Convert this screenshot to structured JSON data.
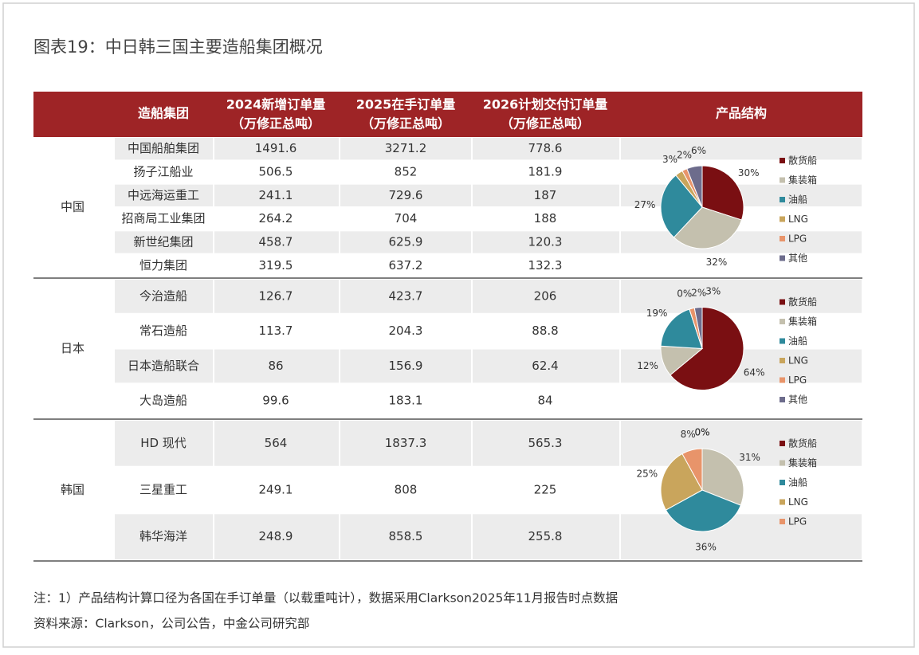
{
  "title": "图表19：中日韩三国主要造船集团概况",
  "table": {
    "headers": [
      [
        "造船集团"
      ],
      [
        "2024新增订单量",
        "（万修正总吨）"
      ],
      [
        "2025在手订单量",
        "（万修正总吨）"
      ],
      [
        "2026计划交付订单量",
        "（万修正总吨）"
      ],
      [
        "产品结构"
      ]
    ],
    "groups": [
      {
        "name": "中国",
        "rows": [
          [
            "中国船舶集团",
            1491.6,
            3271.2,
            778.6
          ],
          [
            "扬子江船业",
            506.5,
            852,
            181.9
          ],
          [
            "中远海运重工",
            241.1,
            729.6,
            187
          ],
          [
            "招商局工业集团",
            264.2,
            704,
            188
          ],
          [
            "新世纪集团",
            458.7,
            625.9,
            120.3
          ],
          [
            "恒力集团",
            319.5,
            637.2,
            132.3
          ]
        ],
        "pie": {
          "type": "pie",
          "slices": [
            {
              "name": "散货船",
              "color": "#7a0f12",
              "value": 30,
              "value_label": "30%"
            },
            {
              "name": "集装箱",
              "color": "#c4c0ae",
              "value": 32,
              "value_label": "32%"
            },
            {
              "name": "油船",
              "color": "#2f8a9c",
              "value": 27,
              "value_label": "27%"
            },
            {
              "name": "LNG",
              "color": "#c9a55c",
              "value": 3,
              "value_label": "3%"
            },
            {
              "name": "LPG",
              "color": "#e8946a",
              "value": 2,
              "value_label": "2%"
            },
            {
              "name": "其他",
              "color": "#6d6c8c",
              "value": 6,
              "value_label": "6%"
            }
          ]
        }
      },
      {
        "name": "日本",
        "rows": [
          [
            "今治造船",
            126.7,
            423.7,
            206
          ],
          [
            "常石造船",
            113.7,
            204.3,
            88.8
          ],
          [
            "日本造船联合",
            86,
            156.9,
            62.4
          ],
          [
            "大岛造船",
            99.6,
            183.1,
            84
          ]
        ],
        "pie": {
          "type": "pie",
          "slices": [
            {
              "name": "散货船",
              "color": "#7a0f12",
              "value": 64,
              "value_label": "64%"
            },
            {
              "name": "集装箱",
              "color": "#c4c0ae",
              "value": 12,
              "value_label": "12%"
            },
            {
              "name": "油船",
              "color": "#2f8a9c",
              "value": 19,
              "value_label": "19%"
            },
            {
              "name": "LNG",
              "color": "#c9a55c",
              "value": 0,
              "value_label": "0%"
            },
            {
              "name": "LPG",
              "color": "#e8946a",
              "value": 2,
              "value_label": "2%"
            },
            {
              "name": "其他",
              "color": "#6d6c8c",
              "value": 3,
              "value_label": "3%"
            }
          ]
        }
      },
      {
        "name": "韩国",
        "rows": [
          [
            "HD 现代",
            564,
            1837.3,
            565.3
          ],
          [
            "三星重工",
            249.1,
            808,
            225
          ],
          [
            "韩华海洋",
            248.9,
            858.5,
            255.8
          ]
        ],
        "pie": {
          "type": "pie",
          "slices": [
            {
              "name": "散货船",
              "color": "#7a0f12",
              "value": 0,
              "value_label": "0%"
            },
            {
              "name": "集装箱",
              "color": "#c4c0ae",
              "value": 31,
              "value_label": "31%"
            },
            {
              "name": "油船",
              "color": "#2f8a9c",
              "value": 36,
              "value_label": "36%"
            },
            {
              "name": "LNG",
              "color": "#c9a55c",
              "value": 25,
              "value_label": "25%"
            },
            {
              "name": "LPG",
              "color": "#e8946a",
              "value": 8,
              "value_label": "8%"
            },
            {
              "name": null,
              "color": "#6d6c8c",
              "value": 0,
              "value_label": "0%"
            }
          ]
        }
      }
    ]
  },
  "notes": [
    "注：1）产品结构计算口径为各国在手订单量（以载重吨计），数据采用Clarkson2025年11月报告时点数据",
    "资料来源：Clarkson，公司公告，中金公司研究部"
  ]
}
